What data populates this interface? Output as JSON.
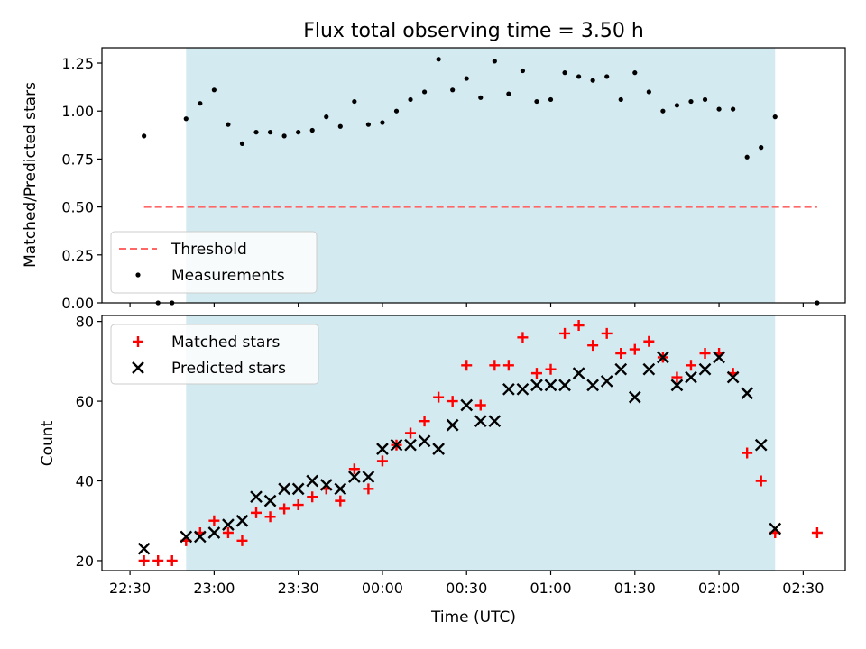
{
  "chart_data": [
    {
      "type": "scatter",
      "title": "Flux total observing time = 3.50 h",
      "xlabel": "",
      "ylabel": "Matched/Predicted stars",
      "x_unit": "time (UTC)",
      "xlim": [
        "22:20",
        "02:45"
      ],
      "ylim": [
        0,
        1.33
      ],
      "yticks": [
        "0.00",
        "0.25",
        "0.50",
        "0.75",
        "1.00",
        "1.25"
      ],
      "shaded_region": {
        "from": "22:50",
        "to": "02:20",
        "color": "#add8e6"
      },
      "legend_position": "lower-left",
      "series": [
        {
          "name": "Threshold",
          "style": "dashed-line",
          "color": "#ff6666",
          "points": [
            [
              "22:35",
              0.5
            ],
            [
              "02:35",
              0.5
            ]
          ]
        },
        {
          "name": "Measurements",
          "style": "dot",
          "color": "#000000",
          "points": [
            [
              "22:35",
              0.87
            ],
            [
              "22:40",
              0.0
            ],
            [
              "22:45",
              0.0
            ],
            [
              "22:50",
              0.96
            ],
            [
              "22:55",
              1.04
            ],
            [
              "23:00",
              1.11
            ],
            [
              "23:05",
              0.93
            ],
            [
              "23:10",
              0.83
            ],
            [
              "23:15",
              0.89
            ],
            [
              "23:20",
              0.89
            ],
            [
              "23:25",
              0.87
            ],
            [
              "23:30",
              0.89
            ],
            [
              "23:35",
              0.9
            ],
            [
              "23:40",
              0.97
            ],
            [
              "23:45",
              0.92
            ],
            [
              "23:50",
              1.05
            ],
            [
              "23:55",
              0.93
            ],
            [
              "00:00",
              0.94
            ],
            [
              "00:05",
              1.0
            ],
            [
              "00:10",
              1.06
            ],
            [
              "00:15",
              1.1
            ],
            [
              "00:20",
              1.27
            ],
            [
              "00:25",
              1.11
            ],
            [
              "00:30",
              1.17
            ],
            [
              "00:35",
              1.07
            ],
            [
              "00:40",
              1.26
            ],
            [
              "00:45",
              1.09
            ],
            [
              "00:50",
              1.21
            ],
            [
              "00:55",
              1.05
            ],
            [
              "01:00",
              1.06
            ],
            [
              "01:05",
              1.2
            ],
            [
              "01:10",
              1.18
            ],
            [
              "01:15",
              1.16
            ],
            [
              "01:20",
              1.18
            ],
            [
              "01:25",
              1.06
            ],
            [
              "01:30",
              1.2
            ],
            [
              "01:35",
              1.1
            ],
            [
              "01:40",
              1.0
            ],
            [
              "01:45",
              1.03
            ],
            [
              "01:50",
              1.05
            ],
            [
              "01:55",
              1.06
            ],
            [
              "02:00",
              1.01
            ],
            [
              "02:05",
              1.01
            ],
            [
              "02:10",
              0.76
            ],
            [
              "02:15",
              0.81
            ],
            [
              "02:20",
              0.97
            ],
            [
              "02:35",
              0.0
            ]
          ]
        }
      ]
    },
    {
      "type": "scatter",
      "title": "",
      "xlabel": "Time (UTC)",
      "ylabel": "Count",
      "xlim": [
        "22:20",
        "02:45"
      ],
      "ylim": [
        17.5,
        81.5
      ],
      "yticks": [
        "20",
        "40",
        "60",
        "80"
      ],
      "xticks": [
        "22:30",
        "23:00",
        "23:30",
        "00:00",
        "00:30",
        "01:00",
        "01:30",
        "02:00",
        "02:30"
      ],
      "shaded_region": {
        "from": "22:50",
        "to": "02:20",
        "color": "#add8e6"
      },
      "legend_position": "top-left",
      "series": [
        {
          "name": "Matched stars",
          "marker": "plus",
          "color": "#ff0000",
          "points": [
            [
              "22:35",
              20
            ],
            [
              "22:40",
              20
            ],
            [
              "22:45",
              20
            ],
            [
              "22:50",
              25
            ],
            [
              "22:55",
              27
            ],
            [
              "23:00",
              30
            ],
            [
              "23:05",
              27
            ],
            [
              "23:10",
              25
            ],
            [
              "23:15",
              32
            ],
            [
              "23:20",
              31
            ],
            [
              "23:25",
              33
            ],
            [
              "23:30",
              34
            ],
            [
              "23:35",
              36
            ],
            [
              "23:40",
              38
            ],
            [
              "23:45",
              35
            ],
            [
              "23:50",
              43
            ],
            [
              "23:55",
              38
            ],
            [
              "00:00",
              45
            ],
            [
              "00:05",
              49
            ],
            [
              "00:10",
              52
            ],
            [
              "00:15",
              55
            ],
            [
              "00:20",
              61
            ],
            [
              "00:25",
              60
            ],
            [
              "00:30",
              69
            ],
            [
              "00:35",
              59
            ],
            [
              "00:40",
              69
            ],
            [
              "00:45",
              69
            ],
            [
              "00:50",
              76
            ],
            [
              "00:55",
              67
            ],
            [
              "01:00",
              68
            ],
            [
              "01:05",
              77
            ],
            [
              "01:10",
              79
            ],
            [
              "01:15",
              74
            ],
            [
              "01:20",
              77
            ],
            [
              "01:25",
              72
            ],
            [
              "01:30",
              73
            ],
            [
              "01:35",
              75
            ],
            [
              "01:40",
              71
            ],
            [
              "01:45",
              66
            ],
            [
              "01:50",
              69
            ],
            [
              "01:55",
              72
            ],
            [
              "02:00",
              72
            ],
            [
              "02:05",
              67
            ],
            [
              "02:10",
              47
            ],
            [
              "02:15",
              40
            ],
            [
              "02:20",
              27
            ],
            [
              "02:35",
              27
            ]
          ]
        },
        {
          "name": "Predicted stars",
          "marker": "x",
          "color": "#000000",
          "points": [
            [
              "22:35",
              23
            ],
            [
              "22:50",
              26
            ],
            [
              "22:55",
              26
            ],
            [
              "23:00",
              27
            ],
            [
              "23:05",
              29
            ],
            [
              "23:10",
              30
            ],
            [
              "23:15",
              36
            ],
            [
              "23:20",
              35
            ],
            [
              "23:25",
              38
            ],
            [
              "23:30",
              38
            ],
            [
              "23:35",
              40
            ],
            [
              "23:40",
              39
            ],
            [
              "23:45",
              38
            ],
            [
              "23:50",
              41
            ],
            [
              "23:55",
              41
            ],
            [
              "00:00",
              48
            ],
            [
              "00:05",
              49
            ],
            [
              "00:10",
              49
            ],
            [
              "00:15",
              50
            ],
            [
              "00:20",
              48
            ],
            [
              "00:25",
              54
            ],
            [
              "00:30",
              59
            ],
            [
              "00:35",
              55
            ],
            [
              "00:40",
              55
            ],
            [
              "00:45",
              63
            ],
            [
              "00:50",
              63
            ],
            [
              "00:55",
              64
            ],
            [
              "01:00",
              64
            ],
            [
              "01:05",
              64
            ],
            [
              "01:10",
              67
            ],
            [
              "01:15",
              64
            ],
            [
              "01:20",
              65
            ],
            [
              "01:25",
              68
            ],
            [
              "01:30",
              61
            ],
            [
              "01:35",
              68
            ],
            [
              "01:40",
              71
            ],
            [
              "01:45",
              64
            ],
            [
              "01:50",
              66
            ],
            [
              "01:55",
              68
            ],
            [
              "02:00",
              71
            ],
            [
              "02:05",
              66
            ],
            [
              "02:10",
              62
            ],
            [
              "02:15",
              49
            ],
            [
              "02:20",
              28
            ]
          ]
        }
      ]
    }
  ]
}
